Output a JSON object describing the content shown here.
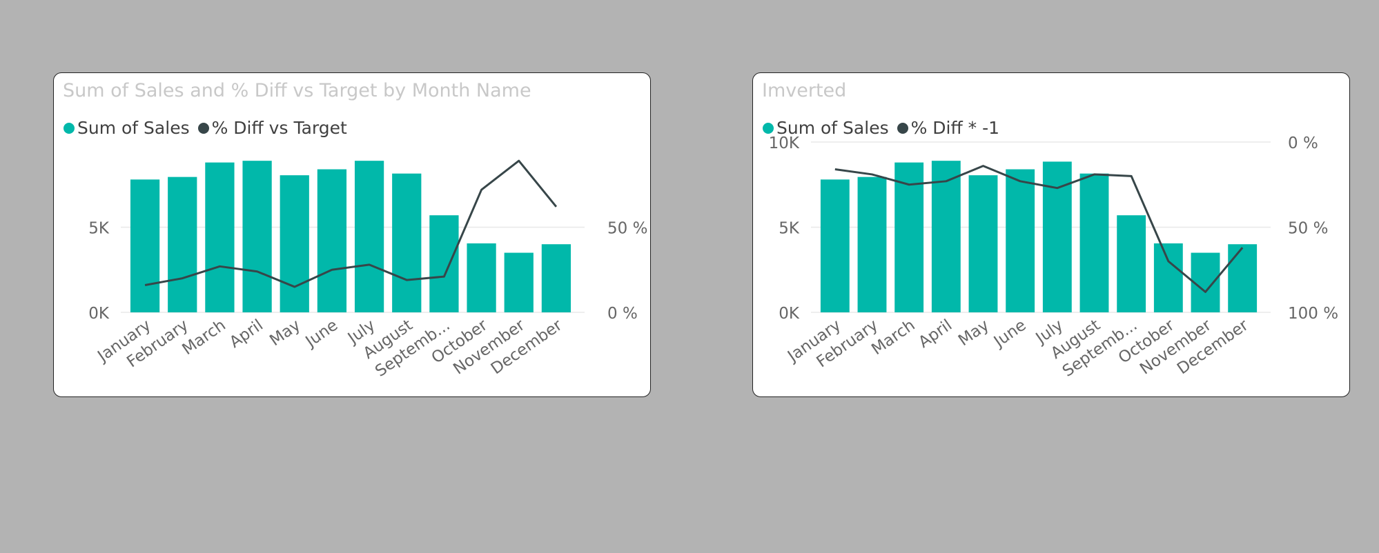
{
  "colors": {
    "bar": "#01b8aa",
    "line": "#374649",
    "grid": "#e8e8e8"
  },
  "chart_data": [
    {
      "type": "bar",
      "title": "Sum of Sales and % Diff vs Target by Month Name",
      "legend": [
        {
          "name": "Sum of Sales",
          "color": "#01b8aa"
        },
        {
          "name": "% Diff vs Target",
          "color": "#374649"
        }
      ],
      "legend_placement": "top-left",
      "categories": [
        "January",
        "February",
        "March",
        "April",
        "May",
        "June",
        "July",
        "August",
        "Septemb...",
        "October",
        "November",
        "December"
      ],
      "series": [
        {
          "name": "Sum of Sales",
          "kind": "bar",
          "axis": "left",
          "values": [
            7800,
            7950,
            8800,
            8900,
            8050,
            8400,
            8900,
            8150,
            5700,
            4050,
            3500,
            4000
          ]
        },
        {
          "name": "% Diff vs Target",
          "kind": "line",
          "axis": "right",
          "values": [
            16,
            20,
            27,
            24,
            15,
            25,
            28,
            19,
            21,
            72,
            89,
            62
          ]
        }
      ],
      "y_left": {
        "min": 0,
        "max": 10000,
        "ticks": [
          0,
          5000
        ],
        "tick_labels": [
          "0K",
          "5K"
        ]
      },
      "y_right": {
        "min": 0,
        "max": 100,
        "reversed": false,
        "ticks": [
          0,
          50
        ],
        "tick_labels": [
          "0 %",
          "50 %"
        ]
      },
      "grid": true
    },
    {
      "type": "bar",
      "title": "Imverted",
      "legend": [
        {
          "name": "Sum of Sales",
          "color": "#01b8aa"
        },
        {
          "name": "% Diff * -1",
          "color": "#374649"
        }
      ],
      "legend_placement": "top-left",
      "categories": [
        "January",
        "February",
        "March",
        "April",
        "May",
        "June",
        "July",
        "August",
        "Septemb...",
        "October",
        "November",
        "December"
      ],
      "series": [
        {
          "name": "Sum of Sales",
          "kind": "bar",
          "axis": "left",
          "values": [
            7800,
            7950,
            8800,
            8900,
            8050,
            8400,
            8850,
            8150,
            5700,
            4050,
            3500,
            4000
          ]
        },
        {
          "name": "% Diff * -1",
          "kind": "line",
          "axis": "right",
          "values": [
            16,
            19,
            25,
            23,
            14,
            23,
            27,
            19,
            20,
            70,
            88,
            62
          ]
        }
      ],
      "y_left": {
        "min": 0,
        "max": 10000,
        "ticks": [
          0,
          5000,
          10000
        ],
        "tick_labels": [
          "0K",
          "5K",
          "10K"
        ]
      },
      "y_right": {
        "min": 0,
        "max": 100,
        "reversed": true,
        "ticks": [
          0,
          50,
          100
        ],
        "tick_labels": [
          "0 %",
          "50 %",
          "100 %"
        ]
      },
      "grid": true
    }
  ]
}
